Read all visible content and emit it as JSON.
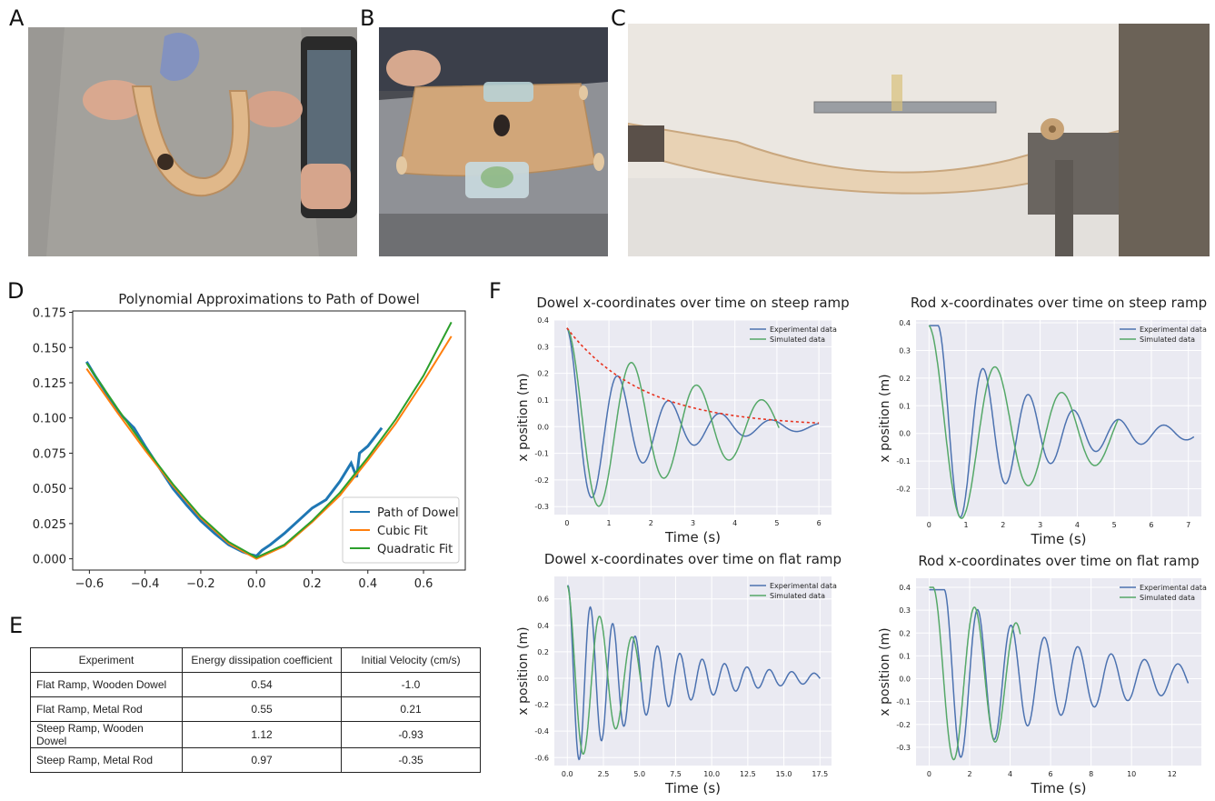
{
  "panel_labels": {
    "a": "A",
    "b": "B",
    "c": "C",
    "d": "D",
    "e": "E",
    "f": "F"
  },
  "colors": {
    "blue": "#4c72b0",
    "orange": "#ff7f0e",
    "green": "#2ca02c",
    "mpl_blue": "#1f77b4",
    "sns_green": "#55a868",
    "sns_bg": "#eaeaf2",
    "decay_red": "#e8321e"
  },
  "photos": {
    "a": {
      "icon": "hand-holding-flexible-ramp-photo"
    },
    "b": {
      "icon": "ramp-on-table-photo"
    },
    "c": {
      "icon": "ramp-side-view-photo"
    }
  },
  "table": {
    "headers": [
      "Experiment",
      "Energy dissipation coefficient",
      "Initial Velocity (cm/s)"
    ],
    "rows": [
      [
        "Flat Ramp, Wooden Dowel",
        "0.54",
        "-1.0"
      ],
      [
        "Flat Ramp, Metal Rod",
        "0.55",
        "0.21"
      ],
      [
        "Steep Ramp, Wooden Dowel",
        "1.12",
        "-0.93"
      ],
      [
        "Steep Ramp, Metal Rod",
        "0.97",
        "-0.35"
      ]
    ]
  },
  "chart_data": [
    {
      "id": "D",
      "type": "line",
      "title": "Polynomial Approximations to Path of Dowel",
      "xlabel": "",
      "ylabel": "",
      "xlim": [
        -0.66,
        0.75
      ],
      "ylim": [
        -0.008,
        0.176
      ],
      "xticks": [
        -0.6,
        -0.4,
        -0.2,
        0.0,
        0.2,
        0.4,
        0.6
      ],
      "xtick_labels": [
        "−0.6",
        "−0.4",
        "−0.2",
        "0.0",
        "0.2",
        "0.4",
        "0.6"
      ],
      "yticks": [
        0.0,
        0.025,
        0.05,
        0.075,
        0.1,
        0.125,
        0.15,
        0.175
      ],
      "ytick_labels": [
        "0.000",
        "0.025",
        "0.050",
        "0.075",
        "0.100",
        "0.125",
        "0.150",
        "0.175"
      ],
      "legend_position": "bottom-right",
      "series": [
        {
          "name": "Path of Dowel",
          "color": "#1f77b4",
          "x": [
            -0.61,
            -0.58,
            -0.55,
            -0.5,
            -0.45,
            -0.44,
            -0.4,
            -0.35,
            -0.3,
            -0.25,
            -0.2,
            -0.15,
            -0.1,
            -0.05,
            -0.02,
            0.0,
            0.02,
            0.05,
            0.1,
            0.15,
            0.2,
            0.25,
            0.3,
            0.34,
            0.36,
            0.37,
            0.4,
            0.45
          ],
          "y": [
            0.14,
            0.13,
            0.121,
            0.105,
            0.095,
            0.093,
            0.08,
            0.065,
            0.05,
            0.038,
            0.027,
            0.018,
            0.01,
            0.005,
            0.003,
            0.002,
            0.006,
            0.01,
            0.018,
            0.027,
            0.036,
            0.042,
            0.055,
            0.068,
            0.058,
            0.075,
            0.08,
            0.093
          ]
        },
        {
          "name": "Cubic Fit",
          "color": "#ff7f0e",
          "x": [
            -0.61,
            -0.5,
            -0.4,
            -0.3,
            -0.2,
            -0.1,
            0.0,
            0.1,
            0.2,
            0.3,
            0.4,
            0.5,
            0.6,
            0.7
          ],
          "y": [
            0.135,
            0.104,
            0.077,
            0.052,
            0.029,
            0.011,
            0.0,
            0.009,
            0.026,
            0.045,
            0.07,
            0.096,
            0.126,
            0.158
          ]
        },
        {
          "name": "Quadratic Fit",
          "color": "#2ca02c",
          "x": [
            -0.61,
            -0.5,
            -0.4,
            -0.3,
            -0.2,
            -0.1,
            0.0,
            0.1,
            0.2,
            0.3,
            0.4,
            0.5,
            0.6,
            0.7
          ],
          "y": [
            0.139,
            0.107,
            0.079,
            0.053,
            0.03,
            0.012,
            0.001,
            0.01,
            0.027,
            0.047,
            0.072,
            0.099,
            0.13,
            0.168
          ]
        }
      ]
    },
    {
      "id": "F1",
      "type": "line",
      "title": "Dowel x-coordinates over time on steep ramp",
      "xlabel": "Time (s)",
      "ylabel": "x position (m)",
      "xlim": [
        -0.3,
        6.3
      ],
      "ylim": [
        -0.33,
        0.4
      ],
      "xticks": [
        0,
        1,
        2,
        3,
        4,
        5,
        6
      ],
      "xtick_labels": [
        "0",
        "1",
        "2",
        "3",
        "4",
        "5",
        "6"
      ],
      "yticks": [
        -0.3,
        -0.2,
        -0.1,
        0.0,
        0.1,
        0.2,
        0.3,
        0.4
      ],
      "ytick_labels": [
        "-0.3",
        "-0.2",
        "-0.1",
        "0.0",
        "0.1",
        "0.2",
        "0.3",
        "0.4"
      ],
      "legend_position": "top-right",
      "series": [
        {
          "name": "Experimental data",
          "color": "#4c72b0",
          "model": {
            "amp": 0.37,
            "period": 1.22,
            "decay": 0.55,
            "t0": 0.0,
            "tmax": 6.0,
            "flat": 0.0
          }
        },
        {
          "name": "Simulated data",
          "color": "#55a868",
          "model": {
            "amp": 0.37,
            "period": 1.55,
            "decay": 0.28,
            "t0": 0.0,
            "tmax": 5.05,
            "flat": 0.0
          }
        },
        {
          "name": "",
          "color": "#e8321e",
          "dashed": true,
          "model": {
            "envelope": 0.37,
            "decay": 0.55,
            "t0": 0.0,
            "tmax": 6.0
          }
        }
      ]
    },
    {
      "id": "F2",
      "type": "line",
      "title": "Rod x-coordinates over time on steep ramp",
      "xlabel": "Time (s)",
      "ylabel": "x position (m)",
      "xlim": [
        -0.35,
        7.35
      ],
      "ylim": [
        -0.3,
        0.41
      ],
      "xticks": [
        0,
        1,
        2,
        3,
        4,
        5,
        6,
        7
      ],
      "xtick_labels": [
        "0",
        "1",
        "2",
        "3",
        "4",
        "5",
        "6",
        "7"
      ],
      "yticks": [
        -0.2,
        -0.1,
        0.0,
        0.1,
        0.2,
        0.3,
        0.4
      ],
      "ytick_labels": [
        "-0.2",
        "-0.1",
        "0.0",
        "0.1",
        "0.2",
        "0.3",
        "0.4"
      ],
      "legend_position": "top-right",
      "series": [
        {
          "name": "Experimental data",
          "color": "#4c72b0",
          "model": {
            "amp": 0.39,
            "period": 1.22,
            "decay": 0.42,
            "t0": 0.25,
            "tmax": 7.15,
            "flat": 0.0
          }
        },
        {
          "name": "Simulated data",
          "color": "#55a868",
          "model": {
            "amp": 0.39,
            "period": 1.8,
            "decay": 0.27,
            "t0": 0.0,
            "tmax": 5.1,
            "flat": 0.0
          }
        }
      ]
    },
    {
      "id": "F3",
      "type": "line",
      "title": "Dowel x-coordinates over time on flat ramp",
      "xlabel": "Time (s)",
      "ylabel": "x position (m)",
      "xlim": [
        -0.9,
        18.3
      ],
      "ylim": [
        -0.66,
        0.77
      ],
      "xticks": [
        0,
        2.5,
        5,
        7.5,
        10,
        12.5,
        15,
        17.5
      ],
      "xtick_labels": [
        "0.0",
        "2.5",
        "5.0",
        "7.5",
        "10.0",
        "12.5",
        "15.0",
        "17.5"
      ],
      "yticks": [
        -0.6,
        -0.4,
        -0.2,
        0.0,
        0.2,
        0.4,
        0.6
      ],
      "ytick_labels": [
        "-0.6",
        "-0.4",
        "-0.2",
        "0.0",
        "0.2",
        "0.4",
        "0.6"
      ],
      "legend_position": "top-right",
      "series": [
        {
          "name": "Experimental data",
          "color": "#4c72b0",
          "model": {
            "amp": 0.7,
            "period": 1.55,
            "decay": 0.17,
            "t0": 0.05,
            "tmax": 17.5,
            "flat": 0.0
          }
        },
        {
          "name": "Simulated data",
          "color": "#55a868",
          "model": {
            "amp": 0.7,
            "period": 2.25,
            "decay": 0.18,
            "t0": 0.0,
            "tmax": 5.1,
            "flat": 0.0
          }
        }
      ]
    },
    {
      "id": "F4",
      "type": "line",
      "title": "Rod x-coordinates over time on flat ramp",
      "xlabel": "Time (s)",
      "ylabel": "x position (m)",
      "xlim": [
        -0.65,
        13.45
      ],
      "ylim": [
        -0.38,
        0.44
      ],
      "xticks": [
        0,
        2,
        4,
        6,
        8,
        10,
        12
      ],
      "xtick_labels": [
        "0",
        "2",
        "4",
        "6",
        "8",
        "10",
        "12"
      ],
      "yticks": [
        -0.3,
        -0.2,
        -0.1,
        0.0,
        0.1,
        0.2,
        0.3,
        0.4
      ],
      "ytick_labels": [
        "-0.3",
        "-0.2",
        "-0.1",
        "0.0",
        "0.1",
        "0.2",
        "0.3",
        "0.4"
      ],
      "legend_position": "top-right",
      "series": [
        {
          "name": "Experimental data",
          "color": "#4c72b0",
          "model": {
            "amp": 0.39,
            "period": 1.65,
            "decay": 0.155,
            "t0": 0.75,
            "tmax": 12.8,
            "flat": 0.0
          }
        },
        {
          "name": "Simulated data",
          "color": "#55a868",
          "model": {
            "amp": 0.4,
            "period": 2.05,
            "decay": 0.12,
            "t0": 0.2,
            "tmax": 4.5,
            "flat": 0.0
          }
        }
      ]
    }
  ]
}
